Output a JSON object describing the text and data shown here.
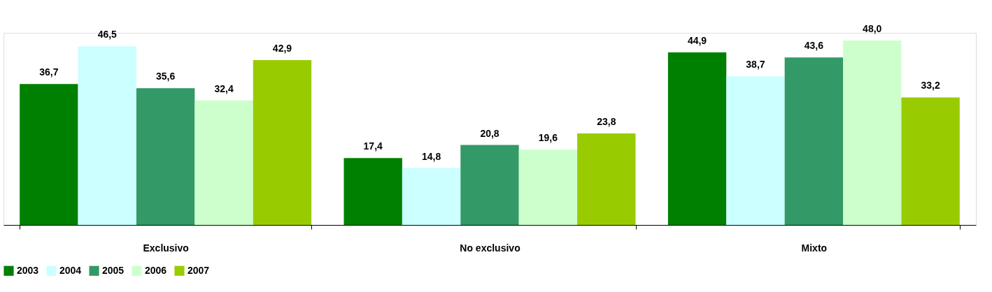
{
  "chart_data": {
    "type": "bar",
    "categories": [
      "Exclusivo",
      "No exclusivo",
      "Mixto"
    ],
    "series": [
      {
        "name": "2003",
        "color": "#008000",
        "values": [
          36.7,
          17.4,
          44.9
        ],
        "value_labels": [
          "36,7",
          "17,4",
          "44,9"
        ]
      },
      {
        "name": "2004",
        "color": "#ccffff",
        "values": [
          46.5,
          14.8,
          38.7
        ],
        "value_labels": [
          "46,5",
          "14,8",
          "38,7"
        ]
      },
      {
        "name": "2005",
        "color": "#339966",
        "values": [
          35.6,
          20.8,
          43.6
        ],
        "value_labels": [
          "35,6",
          "20,8",
          "43,6"
        ]
      },
      {
        "name": "2006",
        "color": "#ccffcc",
        "values": [
          32.4,
          19.6,
          48.0
        ],
        "value_labels": [
          "32,4",
          "19,6",
          "48,0"
        ]
      },
      {
        "name": "2007",
        "color": "#99cc00",
        "values": [
          42.9,
          23.8,
          33.2
        ],
        "value_labels": [
          "42,9",
          "23,8",
          "33,2"
        ]
      }
    ],
    "legend": "bottom",
    "grid": false,
    "tick_labels": "x"
  }
}
